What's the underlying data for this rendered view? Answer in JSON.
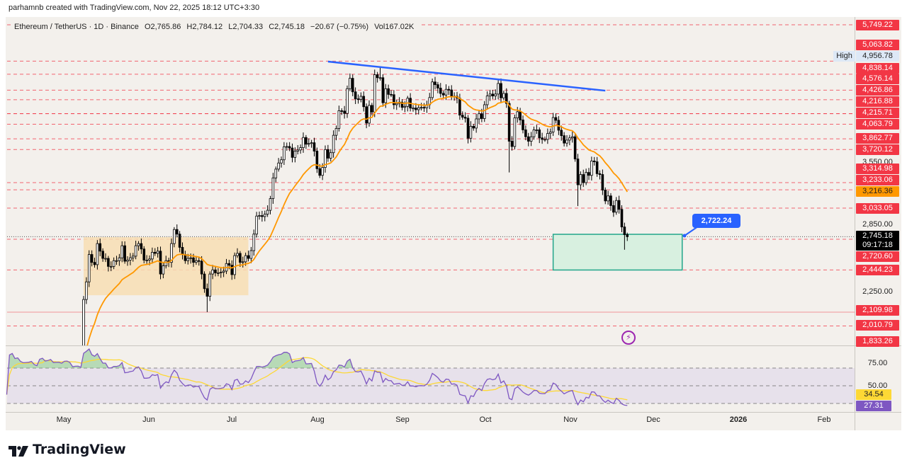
{
  "header": {
    "credit": "parhamnb created with TradingView.com, Nov 22, 2025 18:12 UTC+3:30"
  },
  "legend": {
    "symbol": "Ethereum / TetherUS · 1D · Binance",
    "open": "O2,765.86",
    "high": "H2,784.12",
    "low": "L2,704.33",
    "close": "C2,745.18",
    "change": "−20.67 (−0.75%)",
    "volume": "Vol167.02K"
  },
  "price_axis": {
    "high_tag": "High",
    "labels": [
      {
        "text": "5,749.22",
        "kind": "level"
      },
      {
        "text": "5,063.82",
        "kind": "level"
      },
      {
        "text": "4,956.78",
        "kind": "high"
      },
      {
        "text": "4,838.14",
        "kind": "level"
      },
      {
        "text": "4,576.14",
        "kind": "level"
      },
      {
        "text": "4,426.86",
        "kind": "level"
      },
      {
        "text": "4,216.88",
        "kind": "level"
      },
      {
        "text": "4,215.71",
        "kind": "level"
      },
      {
        "text": "4,063.79",
        "kind": "level"
      },
      {
        "text": "3,862.77",
        "kind": "level"
      },
      {
        "text": "3,720.12",
        "kind": "level"
      },
      {
        "text": "3,550.00",
        "kind": "grid"
      },
      {
        "text": "3,314.98",
        "kind": "level"
      },
      {
        "text": "3,233.06",
        "kind": "level"
      },
      {
        "text": "3,216.36",
        "kind": "ema"
      },
      {
        "text": "3,033.05",
        "kind": "level"
      },
      {
        "text": "2,850.00",
        "kind": "grid"
      },
      {
        "text": "2,745.18",
        "kind": "last"
      },
      {
        "text": "09:17:18",
        "kind": "countdown"
      },
      {
        "text": "2,720.60",
        "kind": "level"
      },
      {
        "text": "2,444.23",
        "kind": "level"
      },
      {
        "text": "2,250.00",
        "kind": "grid"
      },
      {
        "text": "2,109.98",
        "kind": "level"
      },
      {
        "text": "2,010.79",
        "kind": "level"
      },
      {
        "text": "1,833.26",
        "kind": "level"
      },
      {
        "text": "75.00",
        "kind": "grid"
      },
      {
        "text": "50.00",
        "kind": "grid"
      },
      {
        "text": "34.54",
        "kind": "rsi_ma"
      },
      {
        "text": "27.31",
        "kind": "rsi"
      }
    ]
  },
  "time_axis": [
    "May",
    "Jun",
    "Jul",
    "Aug",
    "Sep",
    "Oct",
    "Nov",
    "Dec",
    "2026",
    "Feb"
  ],
  "annotation": {
    "callout": "2,722.24",
    "alert_icon": "lightning-icon"
  },
  "brand": {
    "name": "TradingView",
    "logo": "tradingview-logo"
  },
  "colors": {
    "background": "#f3f0ec",
    "level_line": "#f23645",
    "trendline": "#2962ff",
    "ema_line": "#ff9800",
    "range_box": "#f7deb4",
    "demand_box_fill": "#d8f0e0",
    "demand_box_border": "#22a58a",
    "rsi_line": "#7e57c2",
    "rsi_ma_line": "#fdd835",
    "rsi_band": "#e6dfeb",
    "rsi_overbought_fill": "#7bc47f"
  },
  "chart_data": {
    "type": "candlestick",
    "symbol": "ETH/USDT",
    "interval": "1D",
    "y_scale": "log",
    "ylim": [
      1833.26,
      5749.22
    ],
    "x_start": "2025-04-10",
    "x_end": "2025-11-22",
    "closes": [
      1522,
      1567,
      1645,
      1595,
      1625,
      1590,
      1577,
      1583,
      1588,
      1613,
      1587,
      1578,
      1757,
      1795,
      1770,
      1786,
      1818,
      1793,
      1799,
      1800,
      1793,
      1838,
      1843,
      1834,
      1807,
      1815,
      1816,
      1810,
      2205,
      2345,
      2580,
      2510,
      2490,
      2680,
      2610,
      2545,
      2545,
      2475,
      2475,
      2525,
      2525,
      2550,
      2660,
      2520,
      2530,
      2550,
      2565,
      2660,
      2680,
      2630,
      2530,
      2530,
      2540,
      2600,
      2590,
      2610,
      2410,
      2480,
      2525,
      2510,
      2680,
      2815,
      2770,
      2645,
      2580,
      2525,
      2545,
      2550,
      2510,
      2525,
      2520,
      2410,
      2290,
      2230,
      2410,
      2445,
      2420,
      2420,
      2425,
      2435,
      2500,
      2485,
      2405,
      2570,
      2590,
      2510,
      2515,
      2570,
      2545,
      2615,
      2770,
      2950,
      2955,
      2945,
      2970,
      3010,
      3135,
      3370,
      3475,
      3550,
      3590,
      3755,
      3760,
      3740,
      3620,
      3700,
      3715,
      3745,
      3880,
      3790,
      3800,
      3810,
      3700,
      3480,
      3400,
      3495,
      3720,
      3610,
      3680,
      3910,
      4005,
      4260,
      4255,
      4220,
      4600,
      4770,
      4550,
      4440,
      4430,
      4480,
      4320,
      4080,
      4340,
      4240,
      4830,
      4780,
      4780,
      4380,
      4600,
      4510,
      4505,
      4350,
      4370,
      4390,
      4310,
      4325,
      4450,
      4300,
      4300,
      4275,
      4305,
      4310,
      4305,
      4350,
      4460,
      4710,
      4665,
      4610,
      4525,
      4500,
      4590,
      4580,
      4470,
      4480,
      4450,
      4195,
      4165,
      4150,
      3870,
      4035,
      4010,
      4140,
      4215,
      4145,
      4350,
      4485,
      4515,
      4485,
      4515,
      4685,
      4455,
      4525,
      4370,
      3830,
      3760,
      4155,
      4245,
      4125,
      3985,
      3890,
      3830,
      3890,
      3985,
      3985,
      3875,
      3855,
      3855,
      3935,
      3955,
      4160,
      4120,
      3980,
      3905,
      3805,
      3845,
      3875,
      3890,
      3600,
      3290,
      3410,
      3315,
      3435,
      3400,
      3575,
      3565,
      3420,
      3410,
      3230,
      3110,
      3165,
      3060,
      2990,
      3115,
      3020,
      2840,
      2765,
      2745.18
    ],
    "notable_extremes": [
      {
        "date": "2025-06-22",
        "low": 2110
      },
      {
        "date": "2025-08-24",
        "high": 4956.78
      },
      {
        "date": "2025-10-10",
        "low": 3435
      },
      {
        "date": "2025-11-04",
        "low": 3055
      },
      {
        "date": "2025-11-21",
        "low": 2623
      }
    ],
    "last": {
      "open": 2765.86,
      "high": 2784.12,
      "low": 2704.33,
      "close": 2745.18
    },
    "horizontal_levels": [
      5749.22,
      5063.82,
      4838.14,
      4576.14,
      4426.86,
      4216.88,
      4215.71,
      4063.79,
      3862.77,
      3720.12,
      3314.98,
      3233.06,
      3033.05,
      2720.6,
      2444.23,
      2109.98,
      2010.79,
      1833.26
    ],
    "solid_level": 2109.98,
    "current_price": 2745.18,
    "trendline": [
      {
        "date": "2025-08-05",
        "price": 5057
      },
      {
        "date": "2025-11-14",
        "price": 4569
      }
    ],
    "range_box": {
      "from": "2025-05-08",
      "to": "2025-07-07",
      "top": 2741,
      "bottom": 2238
    },
    "demand_box": {
      "from": "2025-10-26",
      "to": "2025-12-12",
      "top": 2768,
      "bottom": 2444
    },
    "callout_price": 2722.24,
    "rsi": {
      "last": 27.31,
      "ma_last": 34.54,
      "levels": [
        70,
        50,
        30
      ]
    }
  }
}
